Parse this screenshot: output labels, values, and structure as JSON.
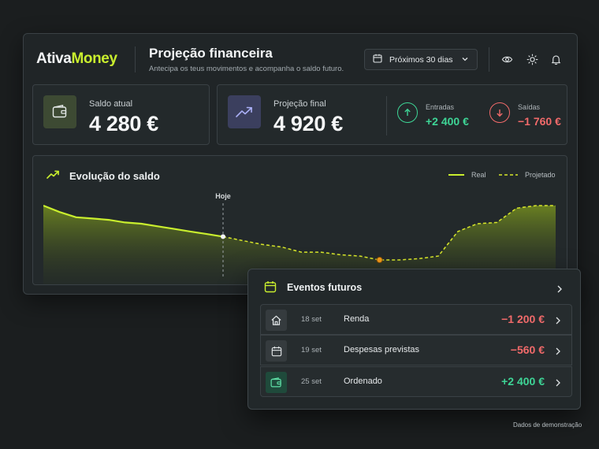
{
  "brand": {
    "logo_part1": "Ativa",
    "logo_part2": "Money",
    "accent": "#c9ee2e"
  },
  "header": {
    "title": "Projeção financeira",
    "subtitle": "Antecipa os teus movimentos e acompanha o saldo futuro.",
    "period_label": "Próximos 30 dias",
    "icons": [
      "calendar-icon",
      "chevron-down-icon",
      "eye-icon",
      "sun-icon",
      "bell-icon"
    ]
  },
  "summary": {
    "current_balance": {
      "label": "Saldo atual",
      "value": "4 280 €",
      "icon": "wallet-icon"
    },
    "final_projection": {
      "label": "Projeção final",
      "value": "4 920 €",
      "icon": "trend-up-icon"
    },
    "inflows": {
      "label": "Entradas",
      "value": "+2 400 €",
      "color": "#3ed596",
      "icon": "arrow-up-icon"
    },
    "outflows": {
      "label": "Saídas",
      "value": "−1 760 €",
      "color": "#f16a6a",
      "icon": "arrow-down-icon"
    }
  },
  "chart": {
    "title": "Evolução do saldo",
    "today_label": "Hoje",
    "legend": {
      "real": "Real",
      "projected": "Projetado"
    },
    "colors": {
      "real": "#c9ee2e",
      "projected": "#d8e72a",
      "low_point": "#f39a1a"
    }
  },
  "chart_data": {
    "type": "line",
    "title": "Evolução do saldo",
    "annotations": [
      "Hoje"
    ],
    "series": [
      {
        "name": "Real",
        "values": [
          100,
          95,
          91,
          90,
          89,
          87,
          86,
          84,
          82,
          80,
          78,
          76
        ]
      },
      {
        "name": "Projetado",
        "values": [
          76,
          73,
          70,
          68,
          64,
          64,
          62,
          61,
          58,
          58,
          59,
          61,
          80,
          86,
          87,
          98,
          100,
          100
        ]
      }
    ]
  },
  "events": {
    "title": "Eventos futuros",
    "items": [
      {
        "date": "18 set",
        "name": "Renda",
        "amount": "−1 200 €",
        "icon": "home-icon",
        "color": "#f16a6a"
      },
      {
        "date": "19 set",
        "name": "Despesas previstas",
        "amount": "−560 €",
        "icon": "calendar-icon",
        "color": "#f16a6a"
      },
      {
        "date": "25 set",
        "name": "Ordenado",
        "amount": "+2 400 €",
        "icon": "wallet-icon",
        "color": "#3ed596"
      }
    ]
  },
  "footer": {
    "note": "Dados de demonstração"
  }
}
